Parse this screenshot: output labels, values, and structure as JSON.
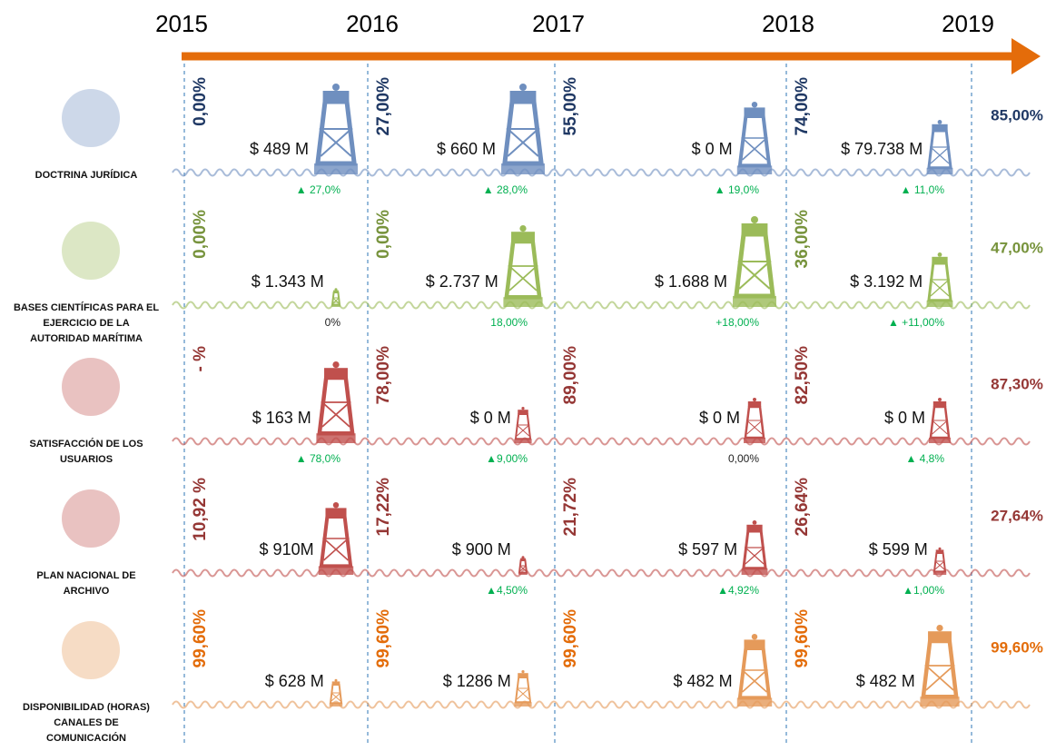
{
  "years": [
    "2015",
    "2016",
    "2017",
    "2018",
    "2019"
  ],
  "rows": [
    {
      "label": [
        "DOCTRINA JURÍDICA"
      ],
      "color": "#1f3864",
      "buoy_color": "#6f8fbf",
      "final": "85,00%",
      "cells": [
        {
          "percent": "0,00%",
          "amount": "$ 489 M",
          "growth": "▲ 27,0%"
        },
        {
          "percent": "27,00%",
          "amount": "$ 660 M",
          "growth": "▲ 28,0%"
        },
        {
          "percent": "55,00%",
          "amount": "$ 0 M",
          "growth": "▲ 19,0%"
        },
        {
          "percent": "74,00%",
          "amount": "$ 79.738 M",
          "growth": "▲ 11,0%"
        }
      ]
    },
    {
      "label": [
        "BASES CIENTÍFICAS PARA EL",
        "EJERCICIO DE LA",
        "AUTORIDAD MARÍTIMA"
      ],
      "color": "#77933c",
      "buoy_color": "#9bbb59",
      "final": "47,00%",
      "cells": [
        {
          "percent": "0,00%",
          "amount": "$ 1.343 M",
          "growth": "0%",
          "growth_color": "#222222"
        },
        {
          "percent": "0,00%",
          "amount": "$ 2.737 M",
          "growth": "18,00%"
        },
        {
          "amount": "$ 1.688 M",
          "growth": "+18,00%"
        },
        {
          "percent": "36,00%",
          "amount": "$ 3.192 M",
          "growth": "▲ +11,00%"
        }
      ]
    },
    {
      "label": [
        "SATISFACCIÓN DE LOS",
        "USUARIOS"
      ],
      "color": "#953735",
      "buoy_color": "#c0504d",
      "final": "87,30%",
      "cells": [
        {
          "percent": "- %",
          "amount": "$ 163 M",
          "growth": "▲ 78,0%"
        },
        {
          "percent": "78,00%",
          "amount": "$ 0 M",
          "growth": "▲9,00%"
        },
        {
          "percent": "89,00%",
          "amount": "$ 0 M",
          "growth": "0,00%",
          "growth_color": "#222222"
        },
        {
          "percent": "82,50%",
          "amount": "$ 0 M",
          "growth": "▲ 4,8%"
        }
      ]
    },
    {
      "label": [
        "PLAN NACIONAL DE",
        "ARCHIVO"
      ],
      "color": "#953735",
      "buoy_color": "#c0504d",
      "final": "27,64%",
      "cells": [
        {
          "percent": "10,92 %",
          "amount": "$ 910M"
        },
        {
          "percent": "17,22%",
          "amount": "$ 900 M",
          "growth": "▲4,50%"
        },
        {
          "percent": "21,72%",
          "amount": "$ 597 M",
          "growth": "▲4,92%"
        },
        {
          "percent": "26,64%",
          "amount": "$ 599 M",
          "growth": "▲1,00%"
        }
      ]
    },
    {
      "label": [
        "DISPONIBILIDAD (HORAS)",
        "CANALES DE",
        "COMUNICACIÓN"
      ],
      "color": "#e36c09",
      "buoy_color": "#e59a5a",
      "final": "99,60%",
      "cells": [
        {
          "percent": "99,60%",
          "amount": "$ 628 M"
        },
        {
          "percent": "99,60%",
          "amount": "$ 1286 M"
        },
        {
          "percent": "99,60%",
          "amount": "$ 482 M"
        },
        {
          "percent": "99,60%",
          "amount": "$ 482 M"
        }
      ]
    }
  ]
}
